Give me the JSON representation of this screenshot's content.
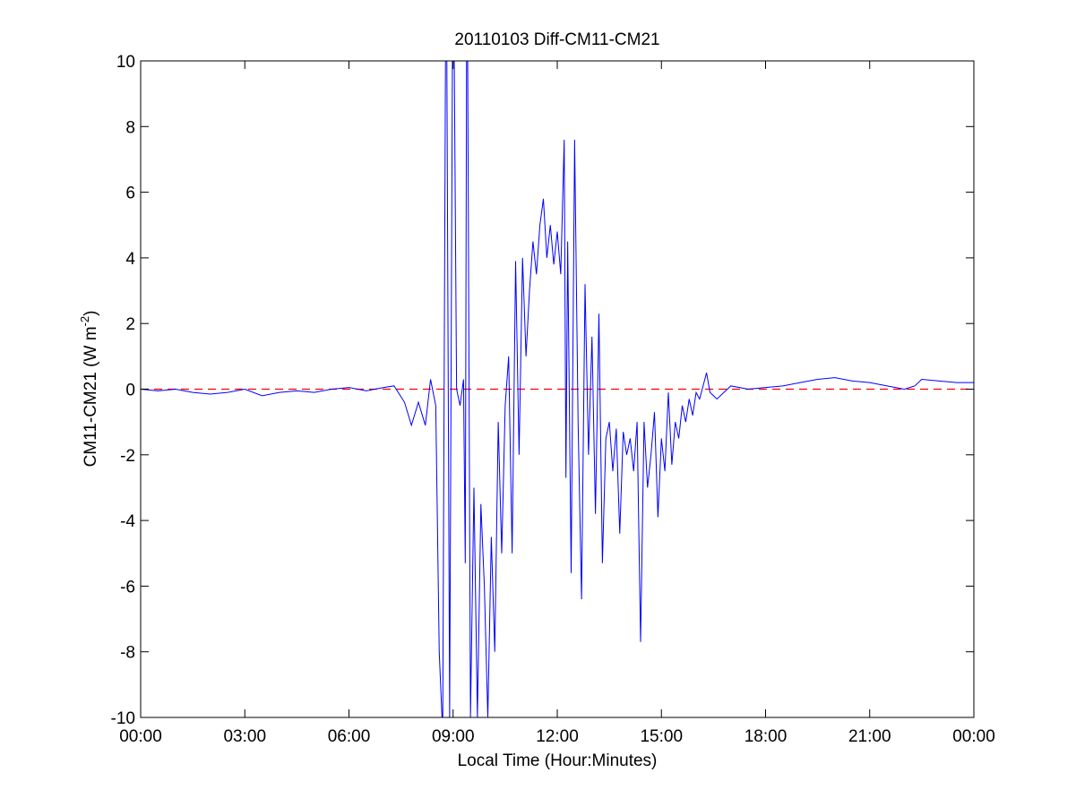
{
  "chart_data": {
    "type": "line",
    "title": "20110103 Diff-CM11-CM21",
    "xlabel": "Local Time (Hour:Minutes)",
    "ylabel": {
      "base": "CM11-CM21 (W m",
      "sup": "-2",
      "end": ")"
    },
    "color": "#0000ff",
    "reference_line": {
      "value": 0,
      "color": "#ff0000"
    },
    "xlim": [
      0,
      24
    ],
    "xticks": [
      {
        "value": 0,
        "label": "00:00"
      },
      {
        "value": 3,
        "label": "03:00"
      },
      {
        "value": 6,
        "label": "06:00"
      },
      {
        "value": 9,
        "label": "09:00"
      },
      {
        "value": 12,
        "label": "12:00"
      },
      {
        "value": 15,
        "label": "15:00"
      },
      {
        "value": 18,
        "label": "18:00"
      },
      {
        "value": 21,
        "label": "21:00"
      },
      {
        "value": 24,
        "label": "00:00"
      }
    ],
    "ylim": [
      -10,
      10
    ],
    "yticks": [
      -10,
      -8,
      -6,
      -4,
      -2,
      0,
      2,
      4,
      6,
      8,
      10
    ],
    "x": [
      0,
      0.5,
      1,
      1.5,
      2,
      2.5,
      3,
      3.5,
      4,
      4.5,
      5,
      5.5,
      6,
      6.5,
      7,
      7.3,
      7.6,
      7.8,
      8.0,
      8.2,
      8.35,
      8.5,
      8.6,
      8.7,
      8.8,
      8.9,
      9.0,
      9.1,
      9.2,
      9.3,
      9.35,
      9.4,
      9.5,
      9.6,
      9.7,
      9.8,
      9.9,
      10.0,
      10.1,
      10.2,
      10.3,
      10.4,
      10.5,
      10.6,
      10.7,
      10.8,
      10.9,
      11.0,
      11.1,
      11.2,
      11.3,
      11.4,
      11.5,
      11.6,
      11.7,
      11.8,
      11.9,
      12.0,
      12.1,
      12.2,
      12.25,
      12.3,
      12.4,
      12.5,
      12.6,
      12.7,
      12.8,
      12.9,
      13.0,
      13.1,
      13.2,
      13.3,
      13.4,
      13.5,
      13.6,
      13.7,
      13.8,
      13.9,
      14.0,
      14.1,
      14.2,
      14.3,
      14.4,
      14.5,
      14.6,
      14.7,
      14.8,
      14.9,
      15.0,
      15.1,
      15.2,
      15.3,
      15.4,
      15.5,
      15.6,
      15.7,
      15.8,
      15.9,
      16.0,
      16.1,
      16.2,
      16.3,
      16.4,
      16.6,
      16.8,
      17,
      17.5,
      18,
      18.5,
      19,
      19.5,
      20,
      20.5,
      21,
      21.5,
      22,
      22.3,
      22.5,
      23,
      23.5,
      24
    ],
    "values": [
      0,
      -0.05,
      0,
      -0.1,
      -0.15,
      -0.1,
      0,
      -0.2,
      -0.1,
      -0.05,
      -0.1,
      0,
      0.05,
      -0.05,
      0.05,
      0.1,
      -0.4,
      -1.1,
      -0.4,
      -1.1,
      0.3,
      -0.5,
      -8,
      -10.5,
      15,
      -10,
      15,
      0,
      -0.5,
      0.3,
      -5.3,
      15,
      -10,
      -3,
      -10,
      -3.5,
      -6,
      -10,
      -4.5,
      -8,
      -1,
      -5,
      -0.5,
      1,
      -5,
      3.9,
      -2,
      4,
      1,
      3,
      4.5,
      3.5,
      5,
      5.8,
      4,
      5,
      3.8,
      4.8,
      3.5,
      7.6,
      -2.7,
      4.5,
      -5.6,
      7.6,
      -1,
      -6.4,
      3.2,
      -2,
      1.6,
      -3.8,
      2.3,
      -5.3,
      -1.5,
      -1,
      -2.5,
      -1.2,
      -4.4,
      -1.3,
      -2,
      -1.5,
      -2.5,
      -1,
      -7.7,
      -1,
      -3,
      -2,
      -0.7,
      -3.9,
      -1.5,
      -2.5,
      -0.1,
      -2.3,
      -1,
      -1.5,
      -0.5,
      -1,
      -0.3,
      -0.8,
      -0.1,
      -0.3,
      0.1,
      0.5,
      -0.1,
      -0.3,
      -0.1,
      0.1,
      0,
      0.05,
      0.1,
      0.2,
      0.3,
      0.35,
      0.25,
      0.2,
      0.1,
      0,
      0.1,
      0.3,
      0.25,
      0.2,
      0.2
    ]
  }
}
